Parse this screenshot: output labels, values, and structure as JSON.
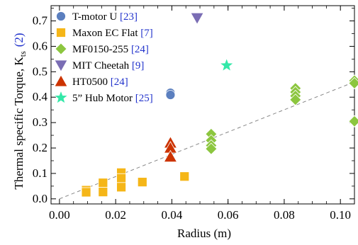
{
  "chart_data": {
    "type": "scatter",
    "xlabel": "Radius (m)",
    "ylabel": "Thermal specific Torque, K",
    "ylabel_sub": "ts",
    "ylabel_ref": "(2)",
    "xlim": [
      -0.003,
      0.105
    ],
    "ylim": [
      -0.02,
      0.76
    ],
    "xticks": [
      "0.00",
      "0.02",
      "0.04",
      "0.06",
      "0.08",
      "0.10"
    ],
    "xtick_values": [
      0.0,
      0.02,
      0.04,
      0.06,
      0.08,
      0.1
    ],
    "yticks": [
      "0.0",
      "0.1",
      "0.2",
      "0.3",
      "0.4",
      "0.5",
      "0.6",
      "0.7"
    ],
    "ytick_values": [
      0.0,
      0.1,
      0.2,
      0.3,
      0.4,
      0.5,
      0.6,
      0.7
    ],
    "grid": false,
    "legend_position": "top-left",
    "series": [
      {
        "name": "T-motor U",
        "ref": "[23]",
        "marker": "circle",
        "color": "#5b7fbf",
        "points": [
          [
            0.0395,
            0.417
          ],
          [
            0.0395,
            0.409
          ]
        ]
      },
      {
        "name": "Maxon EC Flat",
        "ref": "[7]",
        "marker": "square",
        "color": "#f5b618",
        "points": [
          [
            0.0095,
            0.034
          ],
          [
            0.0095,
            0.026
          ],
          [
            0.0155,
            0.063
          ],
          [
            0.0155,
            0.027
          ],
          [
            0.022,
            0.103
          ],
          [
            0.022,
            0.081
          ],
          [
            0.022,
            0.046
          ],
          [
            0.0295,
            0.066
          ],
          [
            0.0445,
            0.088
          ]
        ]
      },
      {
        "name": "MF0150-255",
        "ref": "[24]",
        "marker": "diamond",
        "color": "#8cc63f",
        "points": [
          [
            0.054,
            0.255
          ],
          [
            0.054,
            0.23
          ],
          [
            0.054,
            0.21
          ],
          [
            0.054,
            0.197
          ],
          [
            0.084,
            0.435
          ],
          [
            0.084,
            0.42
          ],
          [
            0.084,
            0.405
          ],
          [
            0.084,
            0.39
          ],
          [
            0.105,
            0.465
          ],
          [
            0.105,
            0.455
          ],
          [
            0.105,
            0.305
          ]
        ]
      },
      {
        "name": "MIT Cheetah",
        "ref": "[9]",
        "marker": "triangle-down",
        "color": "#7a6db4",
        "points": [
          [
            0.049,
            0.712
          ]
        ]
      },
      {
        "name": "HT0500",
        "ref": "[24]",
        "marker": "triangle-up",
        "color": "#cc3300",
        "points": [
          [
            0.0395,
            0.22
          ],
          [
            0.0395,
            0.2
          ],
          [
            0.0395,
            0.165
          ]
        ]
      },
      {
        "name": "5” Hub Motor",
        "ref": "[25]",
        "marker": "star",
        "color": "#33e8a8",
        "points": [
          [
            0.0595,
            0.525
          ]
        ]
      }
    ],
    "trendline": {
      "style": "dashed",
      "color": "#888888",
      "x": [
        0.0,
        0.105
      ],
      "y": [
        0.0,
        0.46
      ]
    }
  }
}
